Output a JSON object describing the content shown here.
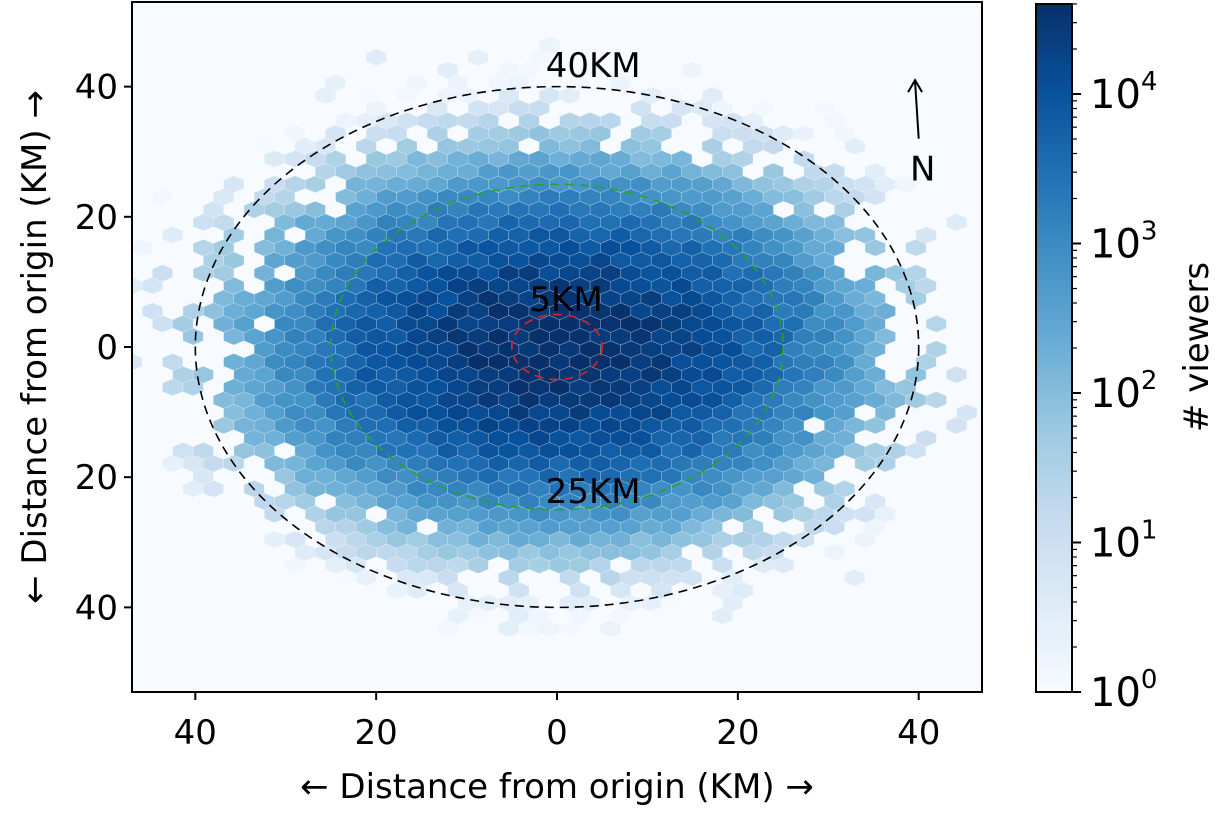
{
  "chart_data": {
    "type": "heatmap",
    "subtype": "hexbin",
    "title": "",
    "xlabel": "← Distance from origin (KM) →",
    "ylabel": "← Distance from origin (KM) →",
    "xlim": [
      -47,
      47
    ],
    "ylim": [
      -53,
      53
    ],
    "xticks": [
      -40,
      -20,
      0,
      20,
      40
    ],
    "xtick_labels": [
      "40",
      "20",
      "0",
      "20",
      "40"
    ],
    "yticks": [
      40,
      20,
      0,
      -20,
      -40
    ],
    "ytick_labels": [
      "40",
      "20",
      "0",
      "20",
      "40"
    ],
    "colormap": "Blues",
    "color_low": "#f7fbff",
    "color_high": "#08306b",
    "colorbar": {
      "label": "# viewers",
      "scale": "log",
      "range": [
        1,
        40000
      ],
      "ticks": [
        {
          "value": 1,
          "base": "10",
          "exp": "0"
        },
        {
          "value": 10,
          "base": "10",
          "exp": "1"
        },
        {
          "value": 100,
          "base": "10",
          "exp": "2"
        },
        {
          "value": 1000,
          "base": "10",
          "exp": "3"
        },
        {
          "value": 10000,
          "base": "10",
          "exp": "4"
        }
      ]
    },
    "density": {
      "peak": 40000,
      "center": [
        0,
        0
      ],
      "sigma_x_km": 11,
      "sigma_y_km": 9,
      "extent_radius_km": 44
    },
    "circles": [
      {
        "label": "5KM",
        "radius": 5,
        "color": "#d62728",
        "label_pos": [
          1,
          5.5
        ]
      },
      {
        "label": "25KM",
        "radius": 25,
        "color": "#2ca02c",
        "label_pos": [
          4,
          -24
        ]
      },
      {
        "label": "40KM",
        "radius": 40,
        "color": "#000000",
        "label_pos": [
          4,
          41.5
        ]
      }
    ],
    "north_arrow": {
      "label": "N",
      "x": 40,
      "y_from": 32,
      "y_to": 41
    }
  }
}
